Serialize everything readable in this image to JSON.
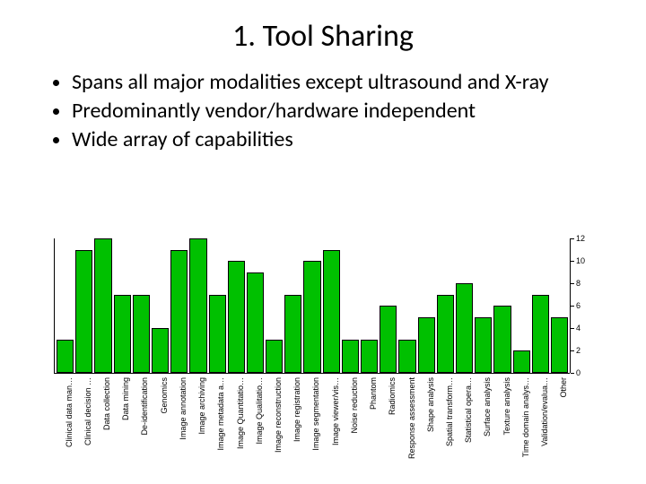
{
  "title": "1. Tool Sharing",
  "bullets": [
    "Spans all major modalities except ultrasound and X-ray",
    "Predominantly vendor/hardware independent",
    "Wide array of capabilities"
  ],
  "chart": {
    "type": "bar",
    "bar_color": "#00c000",
    "bar_border": "#000000",
    "background_color": "#ffffff",
    "axis_color": "#000000",
    "label_fontsize": 9,
    "ylim": [
      0,
      12
    ],
    "yticks": [
      0,
      2,
      4,
      6,
      8,
      10,
      12
    ],
    "categories": [
      "Clinical data man…",
      "Clinical decision …",
      "Data collection",
      "Data mining",
      "De-identification",
      "Genomics",
      "Image annotation",
      "Image archiving",
      "Image metadata a…",
      "Image Quantitatio…",
      "Image Qualitatio…",
      "Image reconstruction",
      "Image registration",
      "Image segmentation",
      "Image viewer/vis…",
      "Noise reduction",
      "Phantom",
      "Radiomics",
      "Response assessment",
      "Shape analysis",
      "Spatial transform…",
      "Statistical opera…",
      "Surface analysis",
      "Texture analysis",
      "Time domain analys…",
      "Validation/evalua…",
      "Other"
    ],
    "values": [
      3,
      11,
      12,
      7,
      7,
      4,
      11,
      12,
      7,
      10,
      9,
      3,
      7,
      10,
      11,
      3,
      3,
      6,
      3,
      5,
      7,
      8,
      5,
      6,
      2,
      7,
      5
    ]
  }
}
